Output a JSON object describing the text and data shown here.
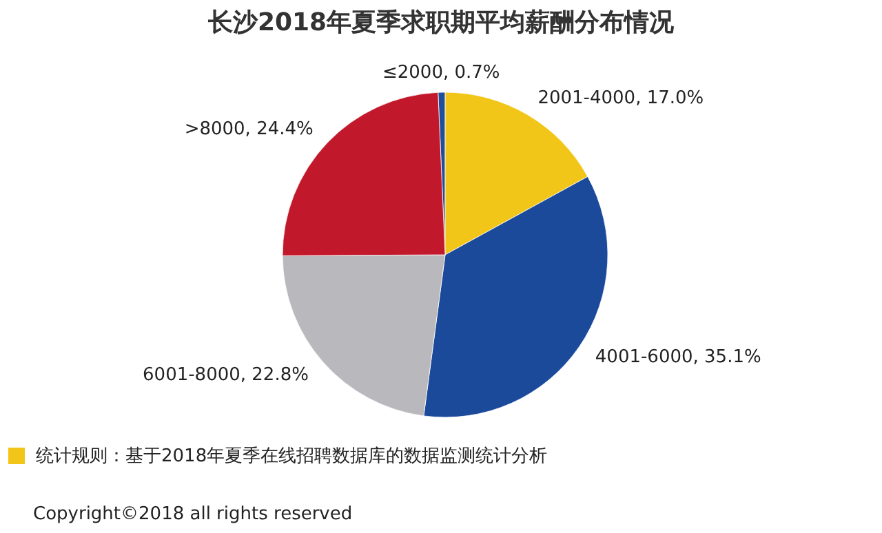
{
  "chart_data": {
    "type": "pie",
    "title": "长沙2018年夏季求职期平均薪酬分布情况",
    "categories": [
      "≤2000",
      "2001-4000",
      "4001-6000",
      "6001-8000",
      ">8000"
    ],
    "values": [
      0.7,
      17.0,
      35.1,
      22.8,
      24.4
    ],
    "value_labels": [
      "0.7%",
      "17.0%",
      "35.1%",
      "22.8%",
      "24.4%"
    ],
    "colors": [
      "#1f4e9a",
      "#f2c619",
      "#1c4a9b",
      "#b9b9bd",
      "#c2182b"
    ],
    "annotations": [
      "统计规则：基于2018年夏季在线招聘数据库的数据监测统计分析",
      "Copyright©2018 all rights reserved"
    ]
  }
}
